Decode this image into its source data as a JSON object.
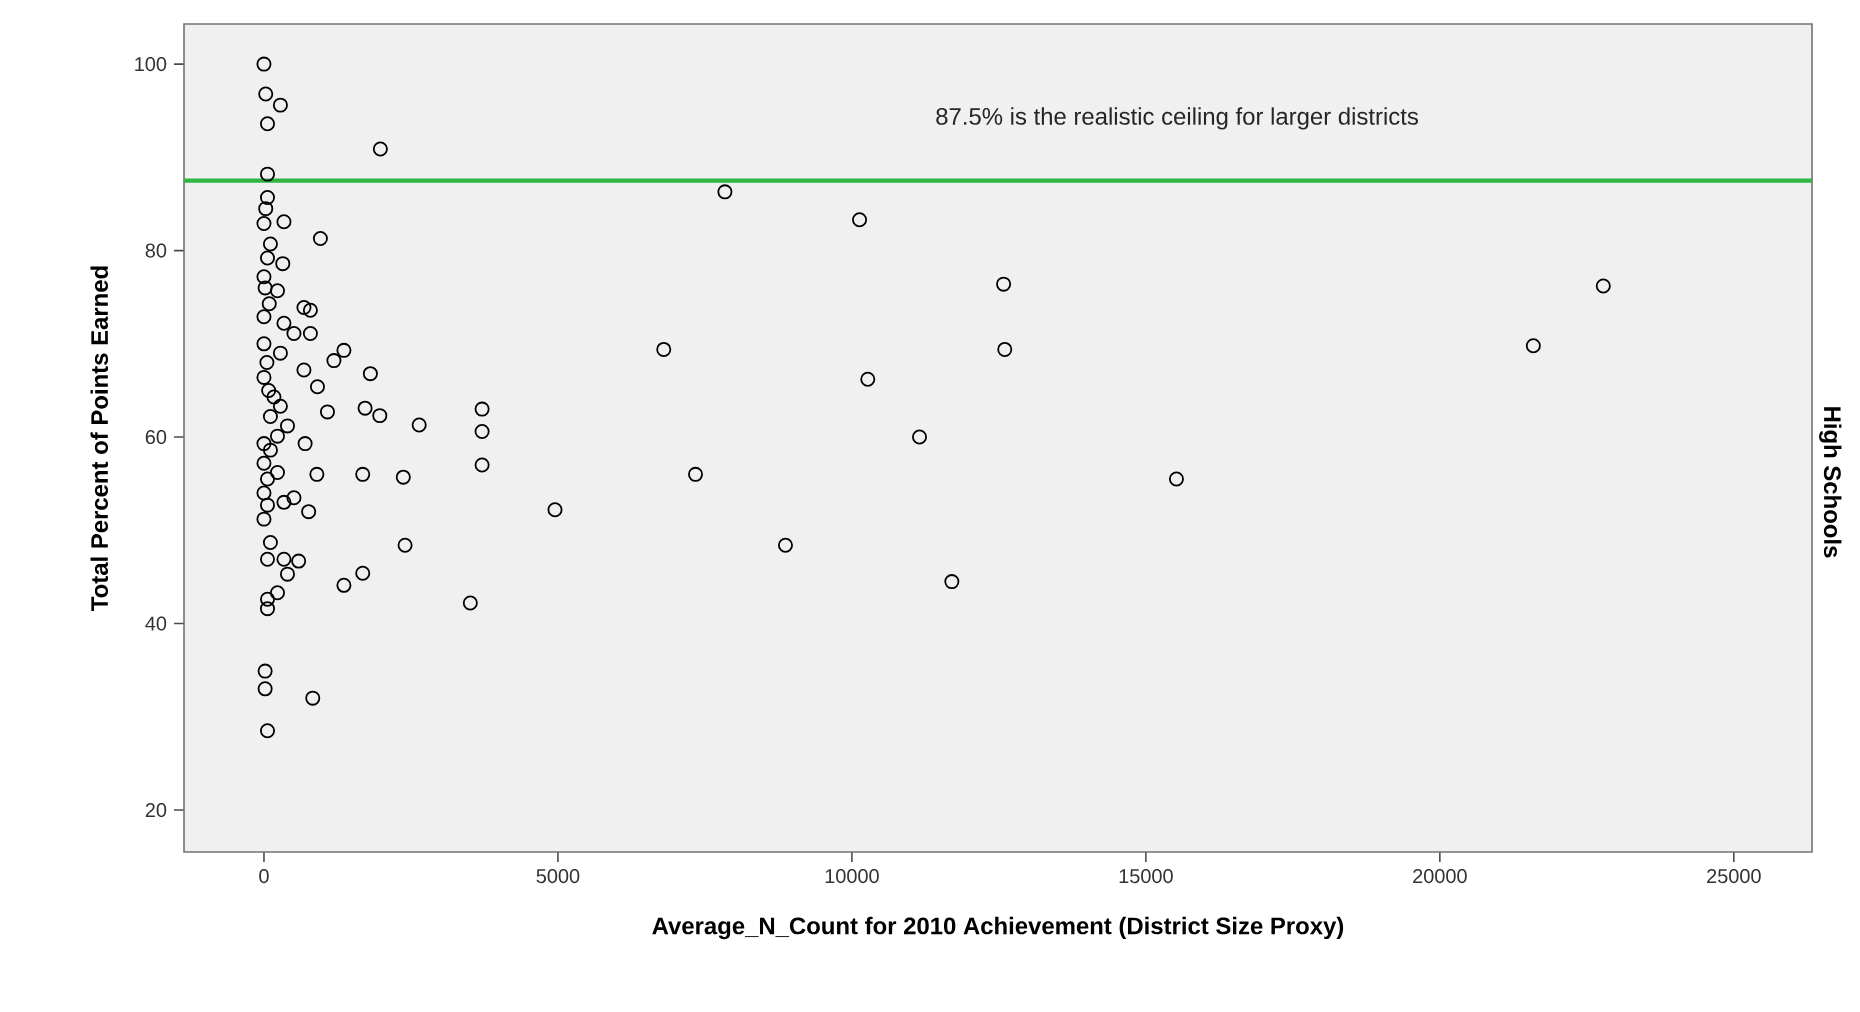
{
  "chart_data": {
    "type": "scatter",
    "xlabel": "Average_N_Count for 2010 Achievement (District Size Proxy)",
    "ylabel": "Total Percent of Points Earned",
    "annotations": [
      "High Schools"
    ],
    "xlim": [
      -1360,
      26330
    ],
    "ylim": [
      15.5,
      104.3
    ],
    "xticks": [
      0,
      5000,
      10000,
      15000,
      20000,
      25000
    ],
    "yticks": [
      20,
      40,
      60,
      80,
      100
    ],
    "grid": false,
    "marker": "circle",
    "ref_lines": [
      {
        "axis": "y",
        "value": 87.5,
        "label": "87.5% is the realistic ceiling for larger districts",
        "color": "#2db742"
      }
    ],
    "series": [
      {
        "color": "#000000",
        "x": [
          7840,
          10130,
          12580,
          22780,
          6800,
          12600,
          21590,
          10270,
          11150,
          7340,
          15520,
          8870,
          11700,
          4950,
          3510,
          3710,
          3710,
          3710,
          2640,
          1970,
          1720,
          1080,
          2370,
          1680,
          900,
          2400,
          1680,
          1360,
          760,
          590,
          400,
          700,
          830,
          60,
          20,
          20,
          60,
          60,
          230,
          60,
          340,
          110,
          0,
          60,
          340,
          510,
          0,
          60,
          230,
          0,
          110,
          0,
          230,
          400,
          110,
          280,
          0,
          30,
          280,
          60,
          1980,
          60,
          340,
          960,
          60,
          0,
          110,
          320,
          0,
          230,
          680,
          790,
          0,
          340,
          790,
          510,
          0,
          1360,
          1190,
          1810,
          680,
          280,
          910,
          0,
          170,
          30,
          60,
          20,
          90,
          50,
          80
        ],
        "values": [
          86.3,
          83.3,
          76.4,
          76.2,
          69.4,
          69.4,
          69.8,
          66.2,
          60.0,
          56.0,
          55.5,
          48.4,
          44.5,
          52.2,
          42.2,
          63.0,
          60.6,
          57.0,
          61.3,
          62.3,
          63.1,
          62.7,
          55.7,
          56.0,
          56.0,
          48.4,
          45.4,
          44.1,
          52.0,
          46.7,
          45.3,
          59.3,
          32.0,
          28.5,
          34.9,
          33.0,
          42.6,
          41.6,
          43.3,
          46.9,
          46.9,
          48.7,
          51.2,
          52.7,
          53.0,
          53.5,
          54.0,
          55.5,
          56.2,
          57.2,
          58.6,
          59.3,
          60.1,
          61.2,
          62.2,
          63.3,
          100.0,
          96.8,
          95.6,
          93.6,
          90.9,
          88.2,
          83.1,
          81.3,
          85.7,
          82.9,
          80.7,
          78.6,
          77.2,
          75.7,
          73.9,
          73.6,
          72.9,
          72.2,
          71.1,
          71.1,
          70.0,
          69.3,
          68.2,
          66.8,
          67.2,
          69.0,
          65.4,
          66.4,
          64.3,
          84.5,
          79.2,
          76.0,
          74.3,
          68.0,
          65.0
        ]
      }
    ]
  }
}
